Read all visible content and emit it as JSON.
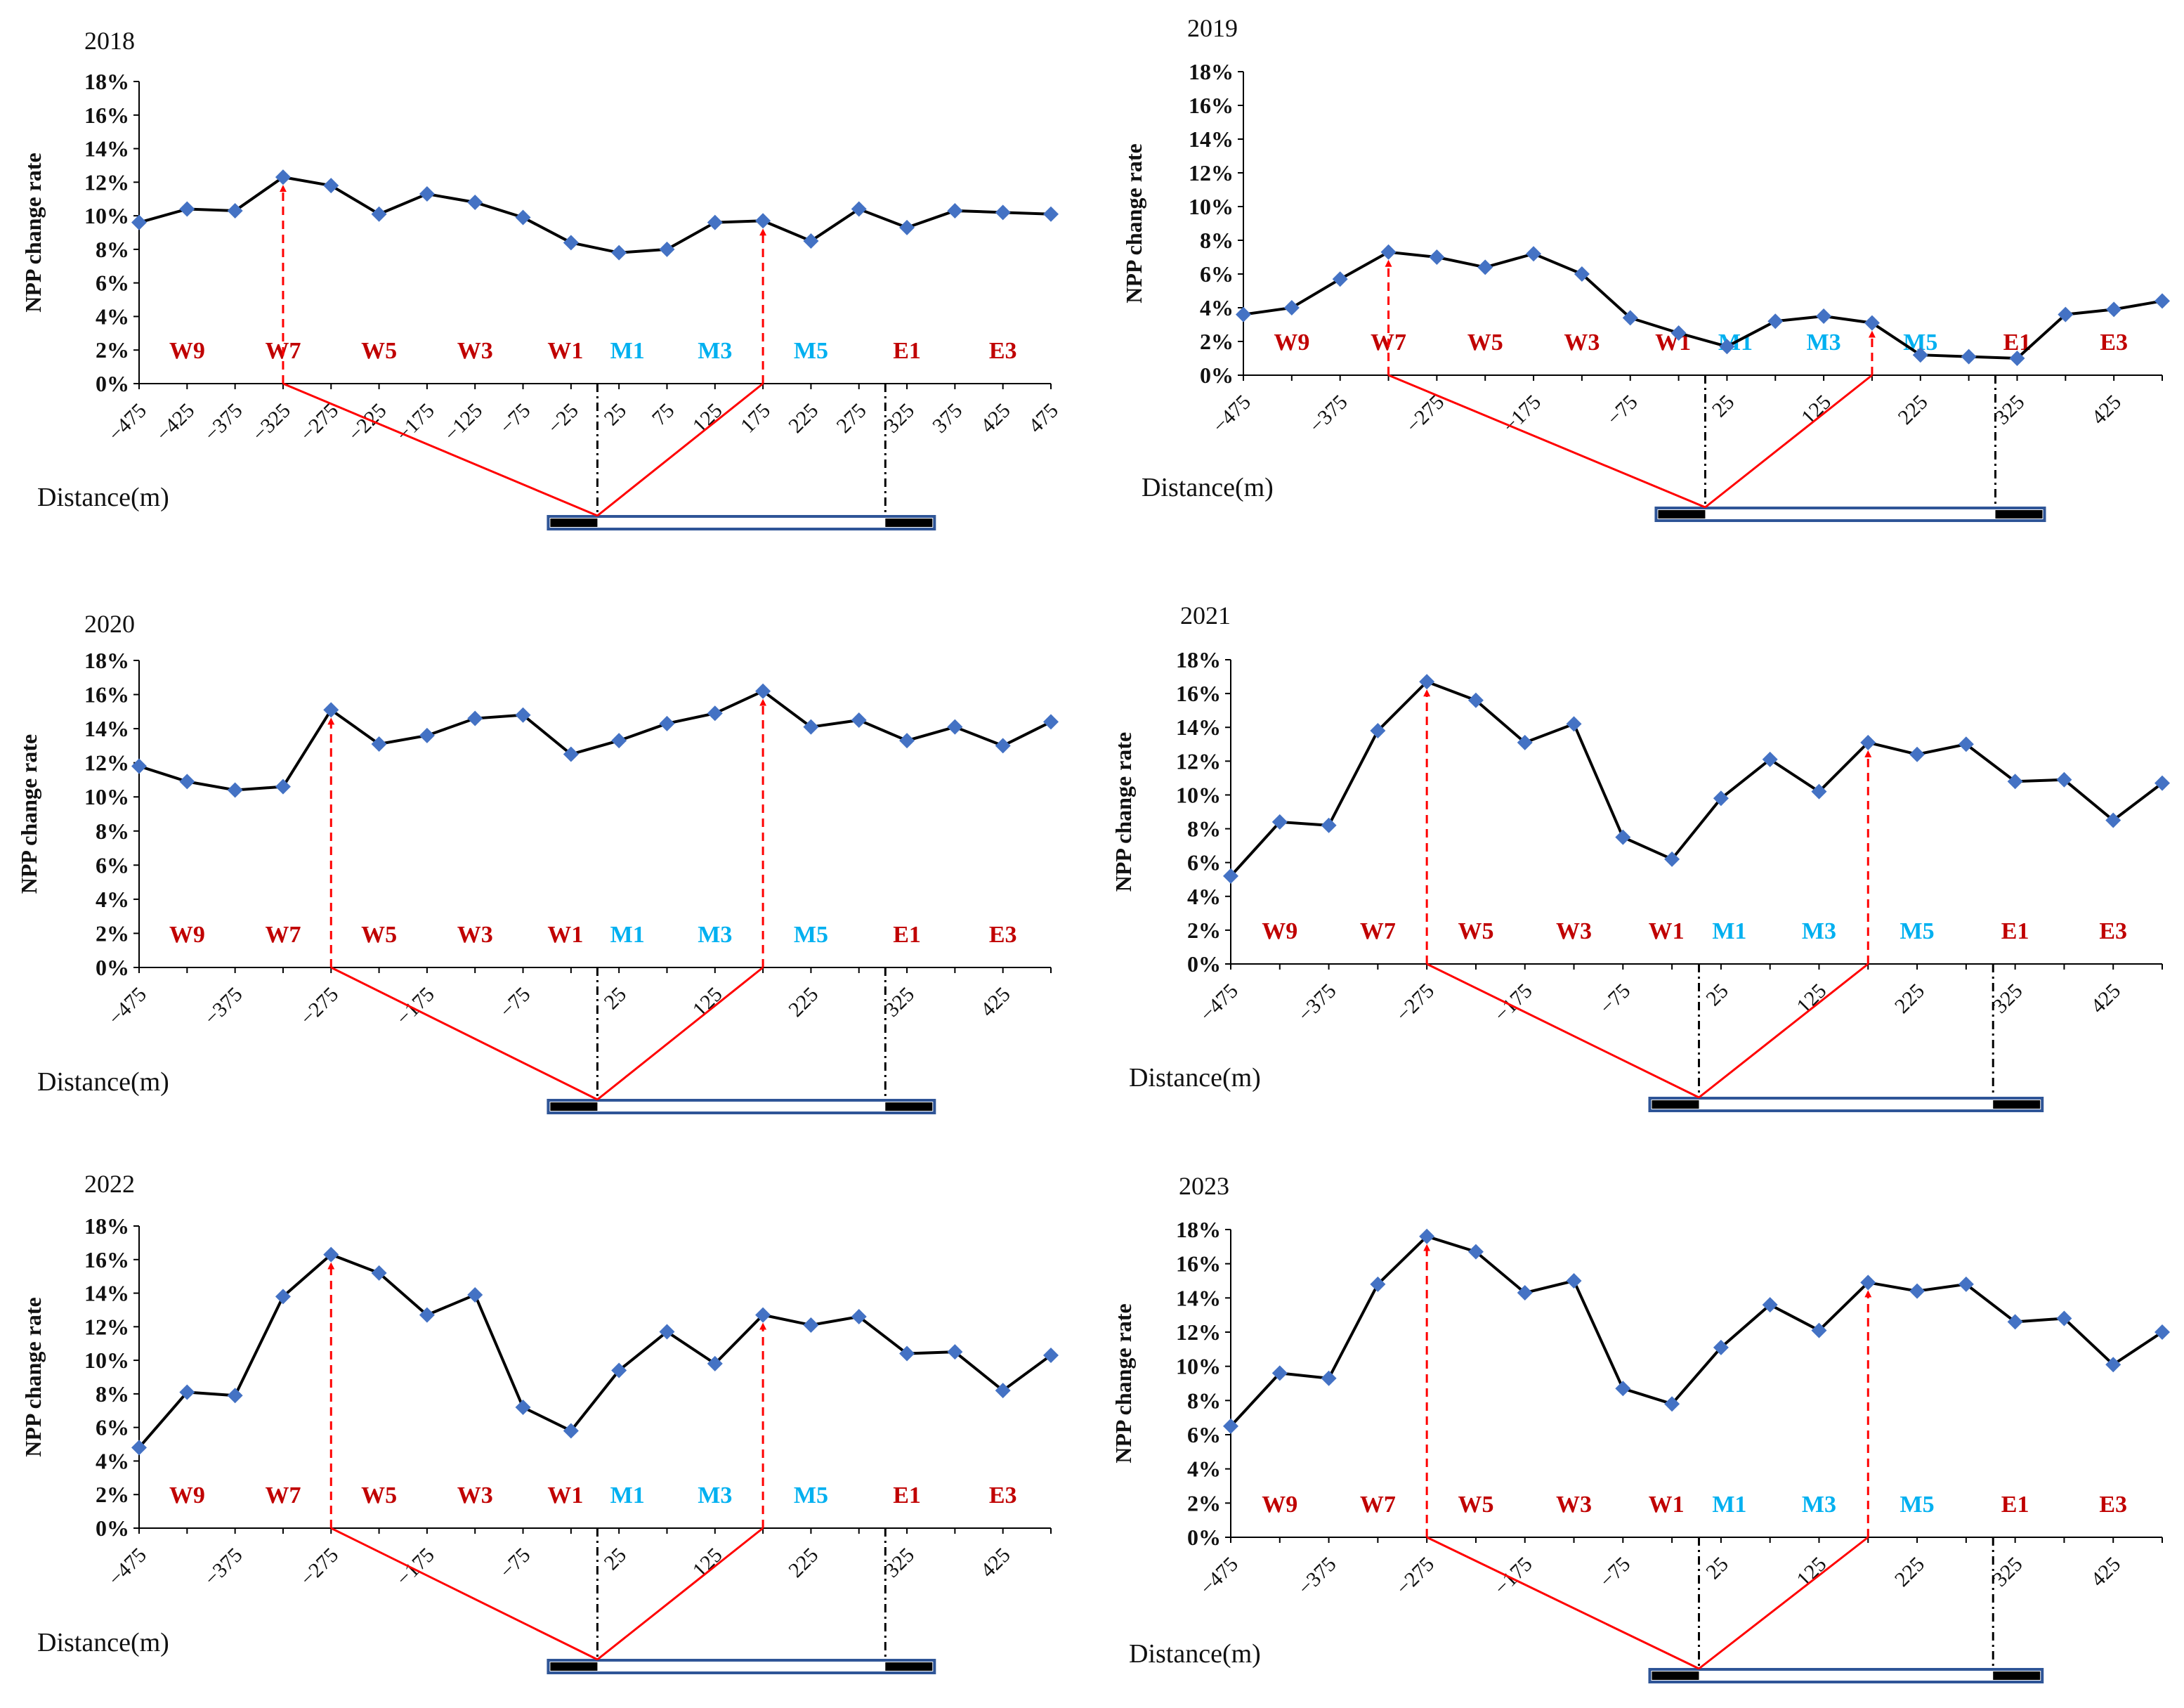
{
  "figure": {
    "colors": {
      "series_line": "#000000",
      "marker": "#4472C4",
      "arrow": "#FF0000",
      "road_blue": "#2F5597",
      "road_black": "#000000",
      "west_label": "#C00000",
      "middle_label": "#00B0F0",
      "east_label": "#C00000"
    }
  },
  "chart_data": [
    {
      "type": "line",
      "title": "2018",
      "ylabel": "NPP change rate",
      "xlabel": "Distance(m)",
      "ylim": [
        0,
        18
      ],
      "yticks": [
        "0%",
        "2%",
        "4%",
        "6%",
        "8%",
        "10%",
        "12%",
        "14%",
        "16%",
        "18%"
      ],
      "xticks": [
        "-475",
        "-425",
        "-375",
        "-325",
        "-275",
        "-225",
        "-175",
        "-125",
        "-75",
        "-25",
        "25",
        "75",
        "125",
        "175",
        "225",
        "275",
        "325",
        "375",
        "425",
        "475"
      ],
      "x": [
        -475,
        -425,
        -375,
        -325,
        -275,
        -225,
        -175,
        -125,
        -75,
        -25,
        25,
        75,
        125,
        175,
        225,
        275,
        325,
        375,
        425,
        475
      ],
      "values": [
        9.6,
        10.4,
        10.3,
        12.3,
        11.8,
        10.1,
        11.3,
        10.8,
        9.9,
        8.4,
        7.8,
        8.0,
        9.6,
        9.7,
        8.5,
        10.4,
        9.3,
        10.3,
        10.2,
        10.1
      ],
      "zones": [
        "W9",
        "W7",
        "W5",
        "W3",
        "W1",
        "M1",
        "M3",
        "M5",
        "E1",
        "E3"
      ],
      "arrow_x": [
        -325,
        175
      ]
    },
    {
      "type": "line",
      "title": "2019",
      "ylabel": "NPP change rate",
      "xlabel": "Distance(m)",
      "ylim": [
        0,
        18
      ],
      "yticks": [
        "0%",
        "2%",
        "4%",
        "6%",
        "8%",
        "10%",
        "12%",
        "14%",
        "16%",
        "18%"
      ],
      "xticks": [
        "-475",
        "-375",
        "-275",
        "-175",
        "-75",
        "25",
        "125",
        "225",
        "325",
        "425"
      ],
      "x": [
        -475,
        -425,
        -375,
        -325,
        -275,
        -225,
        -175,
        -125,
        -75,
        -25,
        25,
        75,
        125,
        175,
        225,
        275,
        325,
        375,
        425,
        475
      ],
      "values": [
        3.6,
        4.0,
        5.7,
        7.3,
        7.0,
        6.4,
        7.2,
        6.0,
        3.4,
        2.5,
        1.7,
        3.2,
        3.5,
        3.1,
        1.2,
        1.1,
        1.0,
        3.6,
        3.9,
        4.4
      ],
      "zones": [
        "W9",
        "W7",
        "W5",
        "W3",
        "W1",
        "M1",
        "M3",
        "M5",
        "E1",
        "E3"
      ],
      "arrow_x": [
        -325,
        175
      ]
    },
    {
      "type": "line",
      "title": "2020",
      "ylabel": "NPP change rate",
      "xlabel": "Distance(m)",
      "ylim": [
        0,
        18
      ],
      "yticks": [
        "0%",
        "2%",
        "4%",
        "6%",
        "8%",
        "10%",
        "12%",
        "14%",
        "16%",
        "18%"
      ],
      "xticks": [
        "-475",
        "-375",
        "-275",
        "-175",
        "-75",
        "25",
        "125",
        "225",
        "325",
        "425"
      ],
      "x": [
        -475,
        -425,
        -375,
        -325,
        -275,
        -225,
        -175,
        -125,
        -75,
        -25,
        25,
        75,
        125,
        175,
        225,
        275,
        325,
        375,
        425,
        475
      ],
      "values": [
        11.8,
        10.9,
        10.4,
        10.6,
        15.1,
        13.1,
        13.6,
        14.6,
        14.8,
        12.5,
        13.3,
        14.3,
        14.9,
        16.2,
        14.1,
        14.5,
        13.3,
        14.1,
        13.0,
        14.4
      ],
      "zones": [
        "W9",
        "W7",
        "W5",
        "W3",
        "W1",
        "M1",
        "M3",
        "M5",
        "E1",
        "E3"
      ],
      "arrow_x": [
        -275,
        175
      ]
    },
    {
      "type": "line",
      "title": "2021",
      "ylabel": "NPP change rate",
      "xlabel": "Distance(m)",
      "ylim": [
        0,
        18
      ],
      "yticks": [
        "0%",
        "2%",
        "4%",
        "6%",
        "8%",
        "10%",
        "12%",
        "14%",
        "16%",
        "18%"
      ],
      "xticks": [
        "-475",
        "-375",
        "-275",
        "-175",
        "-75",
        "25",
        "125",
        "225",
        "325",
        "425"
      ],
      "x": [
        -475,
        -425,
        -375,
        -325,
        -275,
        -225,
        -175,
        -125,
        -75,
        -25,
        25,
        75,
        125,
        175,
        225,
        275,
        325,
        375,
        425,
        475
      ],
      "values": [
        5.2,
        8.4,
        8.2,
        13.8,
        16.7,
        15.6,
        13.1,
        14.2,
        7.5,
        6.2,
        9.8,
        12.1,
        10.2,
        13.1,
        12.4,
        13.0,
        10.8,
        10.9,
        8.5,
        10.7
      ],
      "zones": [
        "W9",
        "W7",
        "W5",
        "W3",
        "W1",
        "M1",
        "M3",
        "M5",
        "E1",
        "E3"
      ],
      "arrow_x": [
        -275,
        175
      ]
    },
    {
      "type": "line",
      "title": "2022",
      "ylabel": "NPP change rate",
      "xlabel": "Distance(m)",
      "ylim": [
        0,
        18
      ],
      "yticks": [
        "0%",
        "2%",
        "4%",
        "6%",
        "8%",
        "10%",
        "12%",
        "14%",
        "16%",
        "18%"
      ],
      "xticks": [
        "-475",
        "-375",
        "-275",
        "-175",
        "-75",
        "25",
        "125",
        "225",
        "325",
        "425"
      ],
      "x": [
        -475,
        -425,
        -375,
        -325,
        -275,
        -225,
        -175,
        -125,
        -75,
        -25,
        25,
        75,
        125,
        175,
        225,
        275,
        325,
        375,
        425,
        475
      ],
      "values": [
        4.8,
        8.1,
        7.9,
        13.8,
        16.3,
        15.2,
        12.7,
        13.9,
        7.2,
        5.8,
        9.4,
        11.7,
        9.8,
        12.7,
        12.1,
        12.6,
        10.4,
        10.5,
        8.2,
        10.3
      ],
      "zones": [
        "W9",
        "W7",
        "W5",
        "W3",
        "W1",
        "M1",
        "M3",
        "M5",
        "E1",
        "E3"
      ],
      "arrow_x": [
        -275,
        175
      ]
    },
    {
      "type": "line",
      "title": "2023",
      "ylabel": "NPP change rate",
      "xlabel": "Distance(m)",
      "ylim": [
        0,
        18
      ],
      "yticks": [
        "0%",
        "2%",
        "4%",
        "6%",
        "8%",
        "10%",
        "12%",
        "14%",
        "16%",
        "18%"
      ],
      "xticks": [
        "-475",
        "-375",
        "-275",
        "-175",
        "-75",
        "25",
        "125",
        "225",
        "325",
        "425"
      ],
      "x": [
        -475,
        -425,
        -375,
        -325,
        -275,
        -225,
        -175,
        -125,
        -75,
        -25,
        25,
        75,
        125,
        175,
        225,
        275,
        325,
        375,
        425,
        475
      ],
      "values": [
        6.5,
        9.6,
        9.3,
        14.8,
        17.6,
        16.7,
        14.3,
        15.0,
        8.7,
        7.8,
        11.1,
        13.6,
        12.1,
        14.9,
        14.4,
        14.8,
        12.6,
        12.8,
        10.1,
        12.0
      ],
      "zones": [
        "W9",
        "W7",
        "W5",
        "W3",
        "W1",
        "M1",
        "M3",
        "M5",
        "E1",
        "E3"
      ],
      "arrow_x": [
        -275,
        175
      ]
    }
  ]
}
